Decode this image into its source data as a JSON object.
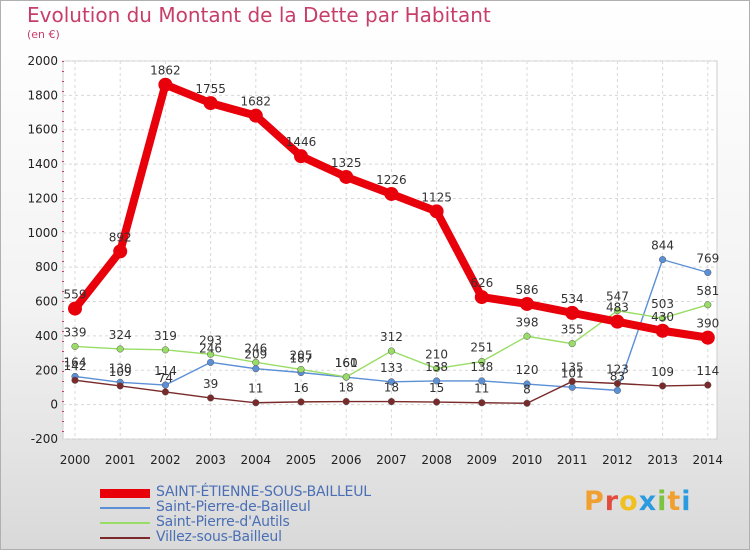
{
  "title": "Evolution du Montant de la Dette par Habitant",
  "subtitle": "(en €)",
  "brand": {
    "letters": [
      "P",
      "r",
      "o",
      "x",
      "i",
      "t",
      "i"
    ],
    "colors": [
      "#f0a030",
      "#e34c3c",
      "#f0c020",
      "#2a9be0",
      "#7cc340",
      "#f0a030",
      "#2a9be0"
    ]
  },
  "chart_data": {
    "type": "line",
    "x": [
      "2000",
      "2001",
      "2002",
      "2003",
      "2004",
      "2005",
      "2006",
      "2007",
      "2008",
      "2009",
      "2010",
      "2011",
      "2012",
      "2013",
      "2014"
    ],
    "ylim": [
      -200,
      2000
    ],
    "yticks": [
      "-200",
      "0",
      "200",
      "400",
      "600",
      "800",
      "1000",
      "1200",
      "1400",
      "1600",
      "1800",
      "2000"
    ],
    "grid": true,
    "legend_position": "bottom-left",
    "series": [
      {
        "name": "SAINT-ÉTIENNE-SOUS-BAILLEUL",
        "color": "#e8000b",
        "values": [
          559,
          892,
          1862,
          1755,
          1682,
          1446,
          1325,
          1226,
          1125,
          626,
          586,
          534,
          483,
          430,
          390
        ],
        "labels": [
          "559",
          "892",
          "1862",
          "1755",
          "1682",
          "1446",
          "1325",
          "1226",
          "1125",
          "626",
          "586",
          "534",
          "483",
          "430",
          "390"
        ]
      },
      {
        "name": "Saint-Pierre-de-Bailleul",
        "color": "#5b8fd6",
        "values": [
          164,
          130,
          114,
          246,
          209,
          187,
          160,
          133,
          138,
          138,
          120,
          101,
          83,
          844,
          769
        ],
        "labels": [
          "164",
          "130",
          "114",
          "246",
          "209",
          "187",
          "160",
          "133",
          "138",
          "138",
          "120",
          "101",
          "83",
          "844",
          "769"
        ]
      },
      {
        "name": "Saint-Pierre-d'Autils",
        "color": "#99dd66",
        "values": [
          339,
          324,
          319,
          293,
          246,
          205,
          161,
          312,
          210,
          251,
          398,
          355,
          547,
          503,
          581
        ],
        "labels": [
          "339",
          "324",
          "319",
          "293",
          "246",
          "205",
          "161",
          "312",
          "210",
          "251",
          "398",
          "355",
          "547",
          "503",
          "581"
        ]
      },
      {
        "name": "Villez-sous-Bailleul",
        "color": "#7a2a2a",
        "values": [
          142,
          109,
          74,
          39,
          11,
          16,
          18,
          18,
          15,
          11,
          8,
          135,
          123,
          109,
          114
        ],
        "labels": [
          "142",
          "109",
          "74",
          "39",
          "11",
          "16",
          "18",
          "18",
          "15",
          "11",
          "8",
          "135",
          "123",
          "109",
          "114"
        ]
      }
    ]
  }
}
